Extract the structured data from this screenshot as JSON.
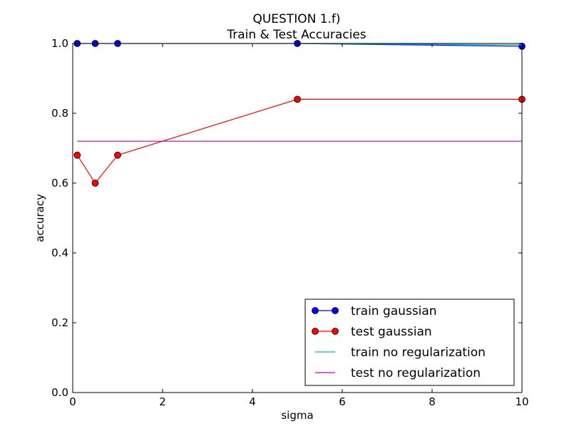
{
  "chart_data": {
    "type": "line",
    "title_line1": "QUESTION 1.f)",
    "title_line2": "Train & Test Accuracies",
    "xlabel": "sigma",
    "ylabel": "accuracy",
    "xlim": [
      0,
      10
    ],
    "ylim": [
      0.0,
      1.0
    ],
    "xticks": [
      0,
      2,
      4,
      6,
      8,
      10
    ],
    "xtick_labels": [
      "0",
      "2",
      "4",
      "6",
      "8",
      "10"
    ],
    "yticks": [
      0.0,
      0.2,
      0.4,
      0.6,
      0.8,
      1.0
    ],
    "ytick_labels": [
      "0.0",
      "0.2",
      "0.4",
      "0.6",
      "0.8",
      "1.0"
    ],
    "grid": false,
    "legend_position": "lower-right",
    "series": [
      {
        "name": "train gaussian",
        "color": "#0000ff",
        "marker": "circle",
        "x": [
          0.1,
          0.5,
          1,
          5,
          10
        ],
        "y": [
          1.0,
          1.0,
          1.0,
          1.0,
          0.992
        ]
      },
      {
        "name": "test gaussian",
        "color": "#ff0000",
        "marker": "circle",
        "x": [
          0.1,
          0.5,
          1,
          5,
          10
        ],
        "y": [
          0.68,
          0.6,
          0.68,
          0.84,
          0.84
        ]
      },
      {
        "name": "train no regularization",
        "color": "#00bfbf",
        "marker": "none",
        "x": [
          0.1,
          0.5,
          1,
          5,
          10
        ],
        "y": [
          1.0,
          1.0,
          1.0,
          1.0,
          0.996
        ]
      },
      {
        "name": "test no regularization",
        "color": "#bf00bf",
        "marker": "none",
        "x": [
          0.1,
          0.5,
          1,
          5,
          10
        ],
        "y": [
          0.72,
          0.72,
          0.72,
          0.72,
          0.72
        ]
      }
    ]
  }
}
